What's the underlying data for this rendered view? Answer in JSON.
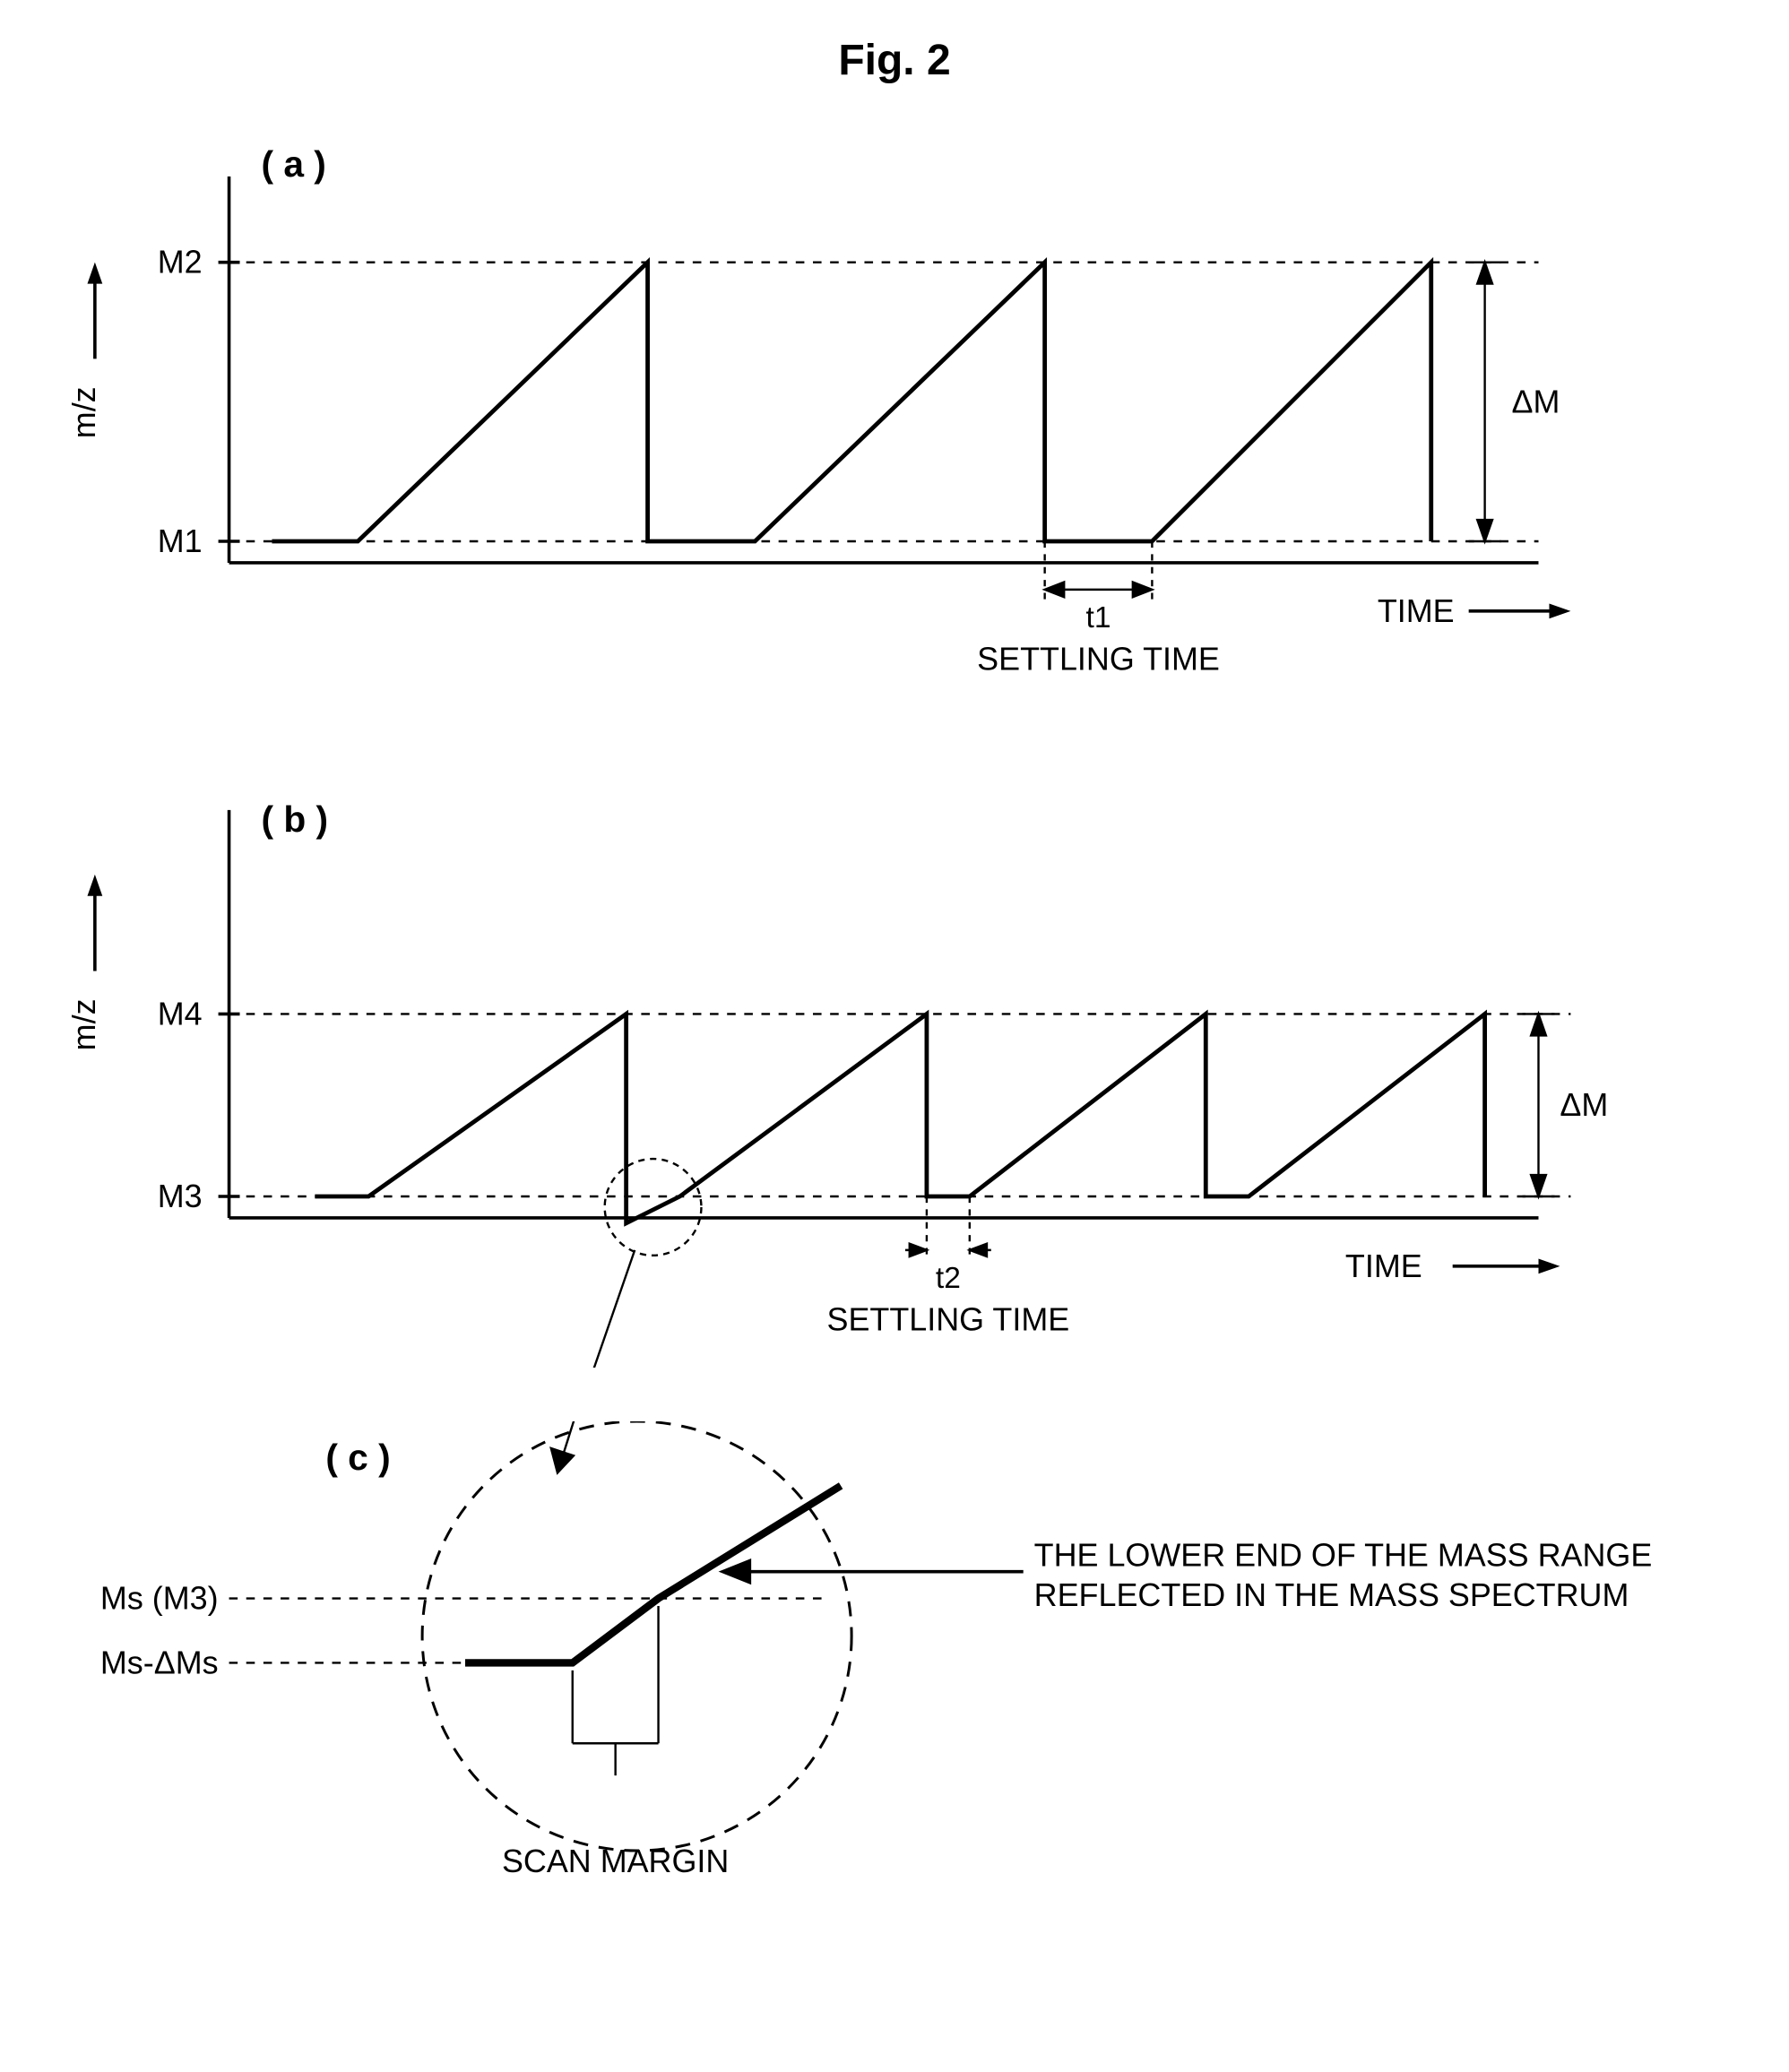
{
  "title": "Fig. 2",
  "panelA": {
    "label": "( a )",
    "yAxisLabel": "m/z",
    "xAxisLabel": "TIME",
    "yTickTop": "M2",
    "yTickBottom": "M1",
    "deltaLabel": "ΔM",
    "tLabel": "t1",
    "settlingLabel": "SETTLING TIME",
    "chart": {
      "stroke": "#000000",
      "strokeWidth": 3,
      "dashColor": "#000000",
      "axisOriginX": 180,
      "axisOriginY": 420,
      "axisTopY": 60,
      "axisRightX": 1400,
      "baselineY": 400,
      "topY": 140,
      "cycles": [
        {
          "holdStartX": 220,
          "rampStartX": 300,
          "rampEndX": 570
        },
        {
          "holdStartX": 570,
          "rampStartX": 670,
          "rampEndX": 940
        },
        {
          "holdStartX": 940,
          "rampStartX": 1040,
          "rampEndX": 1300
        }
      ],
      "tBracketX1": 940,
      "tBracketX2": 1040,
      "deltaBracketX": 1350
    }
  },
  "panelB": {
    "label": "( b )",
    "yAxisLabel": "m/z",
    "xAxisLabel": "TIME",
    "yTickTop": "M4",
    "yTickBottom": "M3",
    "deltaLabel": "ΔM",
    "tLabel": "t2",
    "settlingLabel": "SETTLING TIME",
    "chart": {
      "stroke": "#000000",
      "strokeWidth": 3,
      "axisOriginX": 180,
      "axisOriginY": 420,
      "axisTopY": 40,
      "axisRightX": 1400,
      "baselineY": 400,
      "topY": 230,
      "cycles": [
        {
          "holdStartX": 260,
          "rampStartX": 310,
          "rampEndX": 550
        },
        {
          "holdStartX": 550,
          "rampStartX": 600,
          "rampEndX": 830
        },
        {
          "holdStartX": 830,
          "rampStartX": 870,
          "rampEndX": 1090
        },
        {
          "holdStartX": 1090,
          "rampStartX": 1130,
          "rampEndX": 1350
        }
      ],
      "undershootCycleIndex": 0,
      "undershootY": 425,
      "tBracketX1": 830,
      "tBracketX2": 870,
      "deltaBracketX": 1400,
      "detailCircleCX": 575,
      "detailCircleCY": 410,
      "detailCircleR": 45
    }
  },
  "panelC": {
    "label": "( c )",
    "msLabel": "Ms  (M3)",
    "msDeltaLabel": "Ms-ΔMs",
    "scanMarginLabel": "SCAN MARGIN",
    "noteLine1": "THE LOWER END OF THE MASS RANGE",
    "noteLine2": "REFLECTED IN THE MASS SPECTRUM",
    "chart": {
      "stroke": "#000000",
      "circleCX": 560,
      "circleCY": 200,
      "circleR": 200,
      "msY": 165,
      "msDeltaY": 225,
      "holdStartX": 400,
      "rampStartX": 500,
      "kneeX": 580,
      "rampEndX": 750,
      "rampEndY": 60,
      "bracketY": 300,
      "noteArrowFromX": 920,
      "noteArrowToX": 640,
      "noteArrowY": 140,
      "leaderFromX": 575,
      "leaderFromY": -150,
      "leaderToX": 540,
      "leaderToY": 30
    }
  },
  "colors": {
    "bg": "#ffffff",
    "ink": "#000000"
  },
  "fonts": {
    "title": 48,
    "axis": 30,
    "tick": 30,
    "anno": 30
  }
}
